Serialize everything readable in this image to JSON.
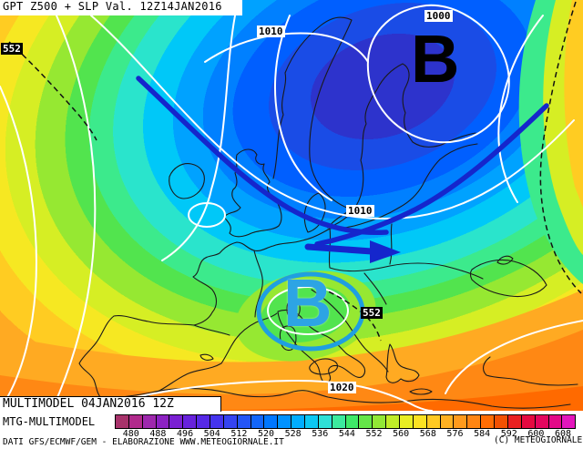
{
  "header": {
    "title": "GPT Z500 + SLP Val. 12Z14JAN2016"
  },
  "map": {
    "pressure_labels": [
      {
        "text": "1010"
      },
      {
        "text": "1000"
      },
      {
        "text": "1010"
      },
      {
        "text": "1020"
      }
    ],
    "height_labels": [
      {
        "text": "552"
      },
      {
        "text": "552"
      }
    ],
    "low_symbols": [
      {
        "text": "B"
      },
      {
        "text": "B"
      }
    ]
  },
  "colors": {
    "arrow_blue": "#1526cc",
    "cutoff_ellipse": "#1f9fe0",
    "low_symbol_black": "#000000",
    "low_symbol_cyan": "#2da4e4",
    "isobar_white": "#ffffff",
    "contour_black": "#111111"
  },
  "footer": {
    "model_line": "MULTIMODEL 04JAN2016 12Z",
    "submodel_line": "MTG-MULTIMODEL",
    "source_line": "DATI GFS/ECMWF/GEM - ELABORAZIONE WWW.METEOGIORNALE.IT",
    "copyright": "(C) METEOGIORNALE"
  },
  "colorbar": {
    "ticks": [
      "480",
      "488",
      "496",
      "504",
      "512",
      "520",
      "528",
      "536",
      "544",
      "552",
      "560",
      "568",
      "576",
      "584",
      "592",
      "600",
      "608"
    ],
    "colors": [
      "#a8336b",
      "#b12a8c",
      "#9e28ad",
      "#8c22c2",
      "#7a20d2",
      "#6722dc",
      "#5629e6",
      "#4534ee",
      "#3544f2",
      "#2455f6",
      "#1366fa",
      "#0077ff",
      "#0092ff",
      "#00adff",
      "#0cc8f2",
      "#2ee0d6",
      "#3cea9e",
      "#3fe968",
      "#64e648",
      "#92e836",
      "#c0ec28",
      "#e8ee22",
      "#fbe222",
      "#ffc922",
      "#ffb122",
      "#ff9a1c",
      "#ff8512",
      "#ff6d04",
      "#f25102",
      "#ea2020",
      "#e60a40",
      "#e4065e",
      "#e30a88",
      "#e316bc"
    ]
  }
}
